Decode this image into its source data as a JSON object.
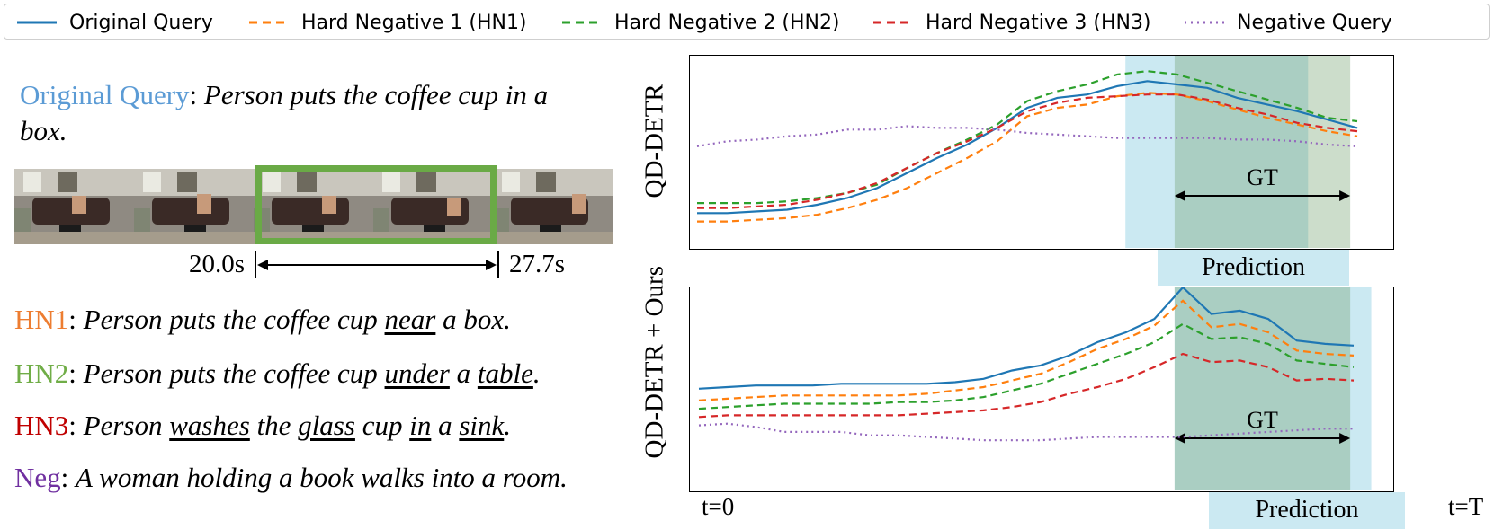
{
  "legend": [
    {
      "label": "Original Query",
      "color": "#1f77b4",
      "style": "solid"
    },
    {
      "label": "Hard Negative 1 (HN1)",
      "color": "#ff7f0e",
      "style": "dashed"
    },
    {
      "label": "Hard Negative 2 (HN2)",
      "color": "#2ca02c",
      "style": "dashed"
    },
    {
      "label": "Hard Negative 3 (HN3)",
      "color": "#d62728",
      "style": "dashed"
    },
    {
      "label": "Negative Query",
      "color": "#9467bd",
      "style": "dotted"
    }
  ],
  "left": {
    "original": {
      "tag": "Original Query",
      "tag_color": "#5b9bd5",
      "text_a": "Person puts the coffee cup in a",
      "text_b": "box."
    },
    "time_start": "20.0s",
    "time_end": "27.7s",
    "hn1": {
      "tag": "HN1",
      "color": "#ed7d31",
      "parts": [
        "Person puts the coffee cup ",
        "near",
        " a box."
      ]
    },
    "hn2": {
      "tag": "HN2",
      "color": "#70ad47",
      "parts": [
        "Person puts the coffee cup ",
        "under",
        " a ",
        "table",
        "."
      ]
    },
    "hn3": {
      "tag": "HN3",
      "color": "#c00000",
      "parts": [
        "Person ",
        "washes",
        " the ",
        "glass",
        " cup ",
        "in",
        " a ",
        "sink",
        "."
      ]
    },
    "neg": {
      "tag": "Neg",
      "color": "#7030a0",
      "text": "A woman holding a book walks into a room."
    }
  },
  "top_plot": {
    "ylabel": "QD-DETR",
    "gt_label": "GT",
    "prediction_label": "Prediction"
  },
  "bottom_plot": {
    "ylabel": "QD-DETR + Ours",
    "gt_label": "GT",
    "prediction_label": "Prediction"
  },
  "axis": {
    "start": "t=0",
    "end": "t=T"
  },
  "chart_data": [
    {
      "type": "line",
      "title": "QD-DETR",
      "xlabel": "",
      "ylabel": "QD-DETR",
      "ylim": [
        0,
        1
      ],
      "x_start": "t=0",
      "x_end": "t=T",
      "gt_span": [
        0.69,
        0.94
      ],
      "prediction_span": [
        0.62,
        0.88
      ],
      "series": [
        {
          "name": "Original Query",
          "color": "#1f77b4",
          "dash": "solid",
          "values": [
            0.09,
            0.09,
            0.1,
            0.11,
            0.14,
            0.18,
            0.24,
            0.33,
            0.42,
            0.5,
            0.6,
            0.72,
            0.78,
            0.8,
            0.85,
            0.88,
            0.86,
            0.84,
            0.78,
            0.74,
            0.7,
            0.65,
            0.6
          ]
        },
        {
          "name": "Hard Negative 1 (HN1)",
          "color": "#ff7f0e",
          "dash": "dashed",
          "values": [
            0.04,
            0.04,
            0.05,
            0.06,
            0.08,
            0.12,
            0.17,
            0.24,
            0.33,
            0.42,
            0.52,
            0.67,
            0.72,
            0.74,
            0.79,
            0.81,
            0.8,
            0.76,
            0.71,
            0.66,
            0.62,
            0.58,
            0.55
          ]
        },
        {
          "name": "Hard Negative 2 (HN2)",
          "color": "#2ca02c",
          "dash": "dashed",
          "values": [
            0.15,
            0.15,
            0.15,
            0.16,
            0.18,
            0.21,
            0.26,
            0.36,
            0.45,
            0.53,
            0.62,
            0.76,
            0.82,
            0.86,
            0.92,
            0.94,
            0.92,
            0.87,
            0.82,
            0.77,
            0.72,
            0.66,
            0.64
          ]
        },
        {
          "name": "Hard Negative 3 (HN3)",
          "color": "#d62728",
          "dash": "dashed",
          "values": [
            0.12,
            0.12,
            0.13,
            0.14,
            0.17,
            0.21,
            0.27,
            0.36,
            0.45,
            0.52,
            0.6,
            0.7,
            0.75,
            0.78,
            0.79,
            0.8,
            0.8,
            0.77,
            0.72,
            0.68,
            0.63,
            0.6,
            0.58
          ]
        },
        {
          "name": "Negative Query",
          "color": "#9467bd",
          "dash": "dotted",
          "values": [
            0.49,
            0.52,
            0.53,
            0.55,
            0.56,
            0.59,
            0.59,
            0.61,
            0.6,
            0.6,
            0.59,
            0.57,
            0.56,
            0.55,
            0.54,
            0.54,
            0.54,
            0.54,
            0.53,
            0.53,
            0.52,
            0.5,
            0.49
          ]
        }
      ]
    },
    {
      "type": "line",
      "title": "QD-DETR + Ours",
      "xlabel": "",
      "ylabel": "QD-DETR + Ours",
      "ylim": [
        0,
        1
      ],
      "x_start": "t=0",
      "x_end": "t=T",
      "gt_span": [
        0.69,
        0.94
      ],
      "prediction_span": [
        0.69,
        0.97
      ],
      "series": [
        {
          "name": "Original Query",
          "color": "#1f77b4",
          "dash": "solid",
          "values": [
            0.39,
            0.4,
            0.41,
            0.41,
            0.41,
            0.42,
            0.42,
            0.42,
            0.42,
            0.43,
            0.45,
            0.5,
            0.53,
            0.59,
            0.67,
            0.73,
            0.81,
            1.0,
            0.84,
            0.86,
            0.81,
            0.68,
            0.66,
            0.65
          ]
        },
        {
          "name": "Hard Negative 1 (HN1)",
          "color": "#ff7f0e",
          "dash": "dashed",
          "values": [
            0.32,
            0.33,
            0.34,
            0.35,
            0.35,
            0.35,
            0.35,
            0.35,
            0.36,
            0.38,
            0.4,
            0.44,
            0.48,
            0.55,
            0.63,
            0.69,
            0.77,
            0.92,
            0.76,
            0.78,
            0.73,
            0.62,
            0.6,
            0.59
          ]
        },
        {
          "name": "Hard Negative 2 (HN2)",
          "color": "#2ca02c",
          "dash": "dashed",
          "values": [
            0.27,
            0.28,
            0.29,
            0.3,
            0.3,
            0.3,
            0.3,
            0.31,
            0.31,
            0.32,
            0.34,
            0.38,
            0.42,
            0.48,
            0.54,
            0.6,
            0.67,
            0.78,
            0.69,
            0.7,
            0.66,
            0.56,
            0.54,
            0.52
          ]
        },
        {
          "name": "Hard Negative 3 (HN3)",
          "color": "#d62728",
          "dash": "dashed",
          "values": [
            0.22,
            0.23,
            0.23,
            0.23,
            0.23,
            0.23,
            0.23,
            0.23,
            0.24,
            0.25,
            0.26,
            0.28,
            0.31,
            0.36,
            0.4,
            0.45,
            0.52,
            0.6,
            0.55,
            0.56,
            0.52,
            0.44,
            0.45,
            0.44
          ]
        },
        {
          "name": "Negative Query",
          "color": "#9467bd",
          "dash": "dotted",
          "values": [
            0.17,
            0.18,
            0.16,
            0.13,
            0.13,
            0.13,
            0.11,
            0.11,
            0.1,
            0.09,
            0.08,
            0.08,
            0.08,
            0.09,
            0.1,
            0.1,
            0.1,
            0.1,
            0.11,
            0.12,
            0.13,
            0.14,
            0.15,
            0.15
          ]
        }
      ]
    }
  ]
}
